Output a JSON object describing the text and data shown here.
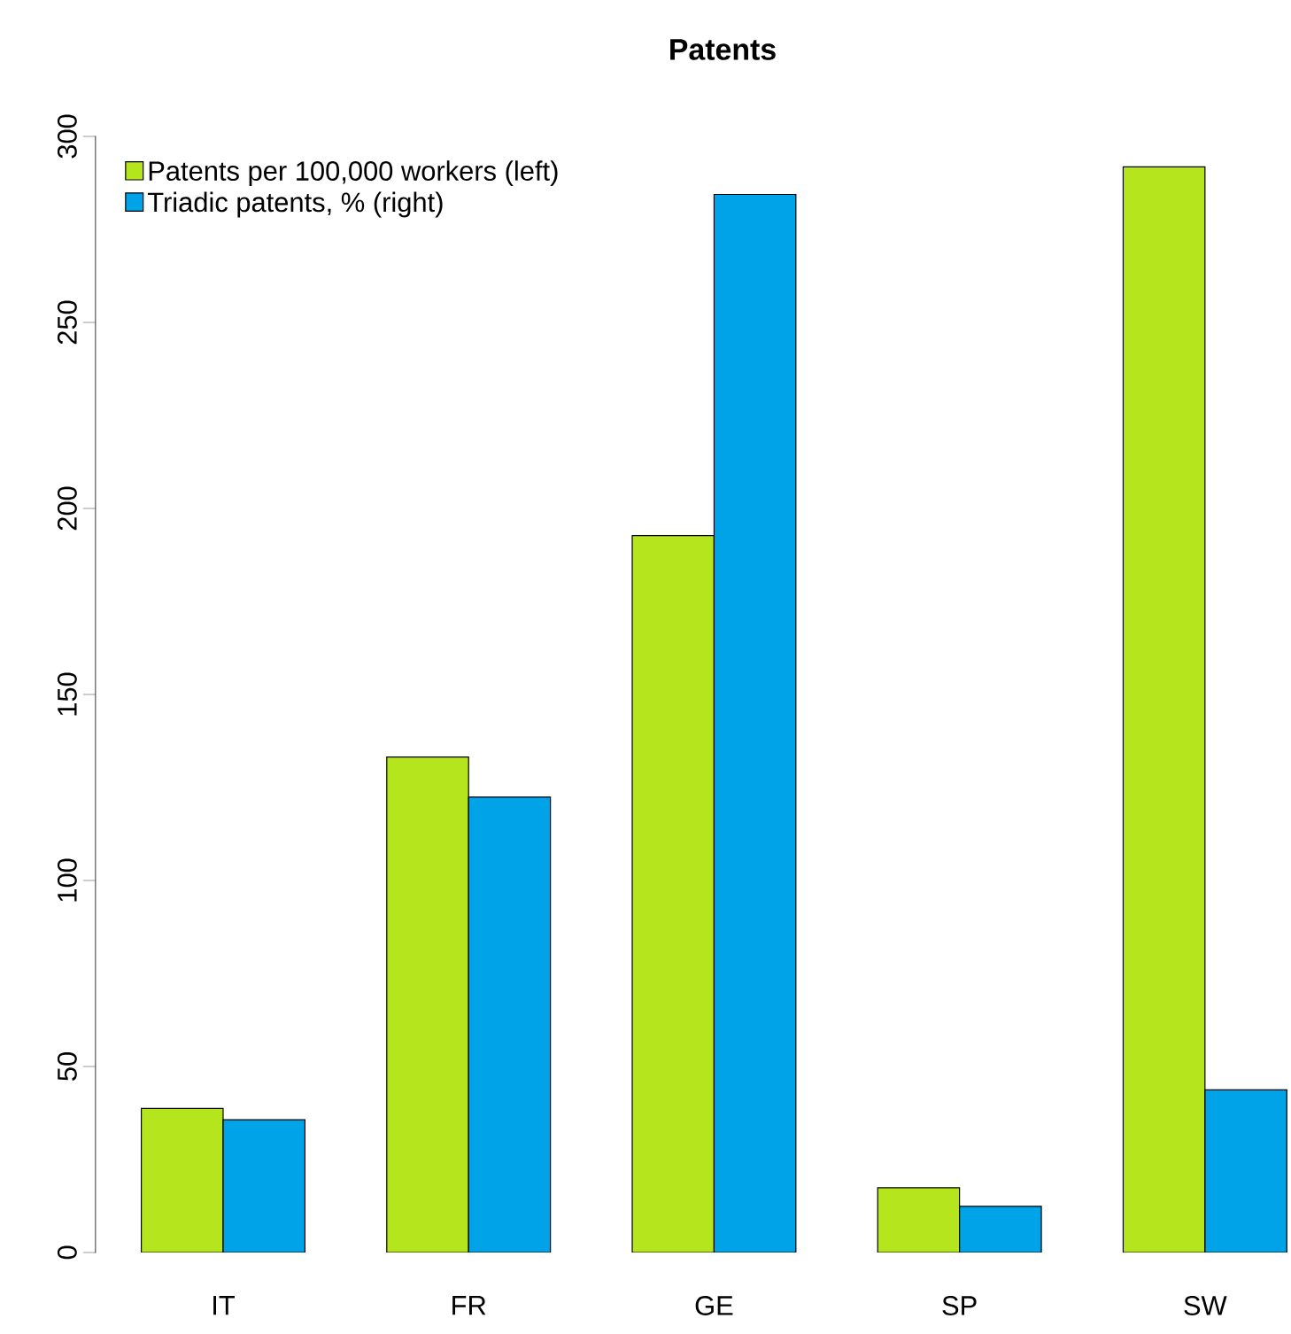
{
  "chart_data": {
    "type": "bar",
    "title": "Patents",
    "categories": [
      "IT",
      "FR",
      "GE",
      "SP",
      "SW"
    ],
    "series": [
      {
        "name": "Patents per 100,000 workers (left)",
        "color": "#b5e61d",
        "values": [
          38.7,
          133.2,
          192.7,
          17.4,
          291.8
        ]
      },
      {
        "name": "Triadic patents, % (right)",
        "color": "#00a2e8",
        "values": [
          35.7,
          122.4,
          284.4,
          12.4,
          43.7
        ]
      }
    ],
    "ylim": [
      0,
      300
    ],
    "yticks": [
      0,
      50,
      100,
      150,
      200,
      250,
      300
    ],
    "legend": "top left"
  }
}
